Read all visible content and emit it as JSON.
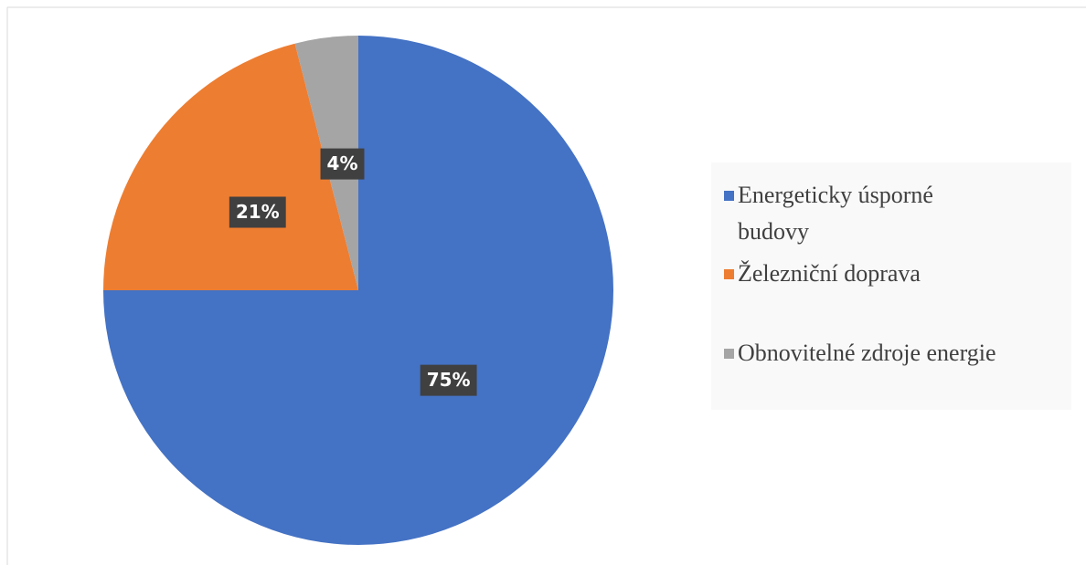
{
  "chart_data": {
    "type": "pie",
    "categories": [
      "Energeticky úsporné budovy",
      "Železniční doprava",
      "Obnovitelné zdroje energie"
    ],
    "values": [
      75,
      21,
      4
    ],
    "value_labels": [
      "75%",
      "21%",
      "4%"
    ],
    "colors": [
      "#4472c4",
      "#ed7d31",
      "#a5a5a5"
    ]
  }
}
